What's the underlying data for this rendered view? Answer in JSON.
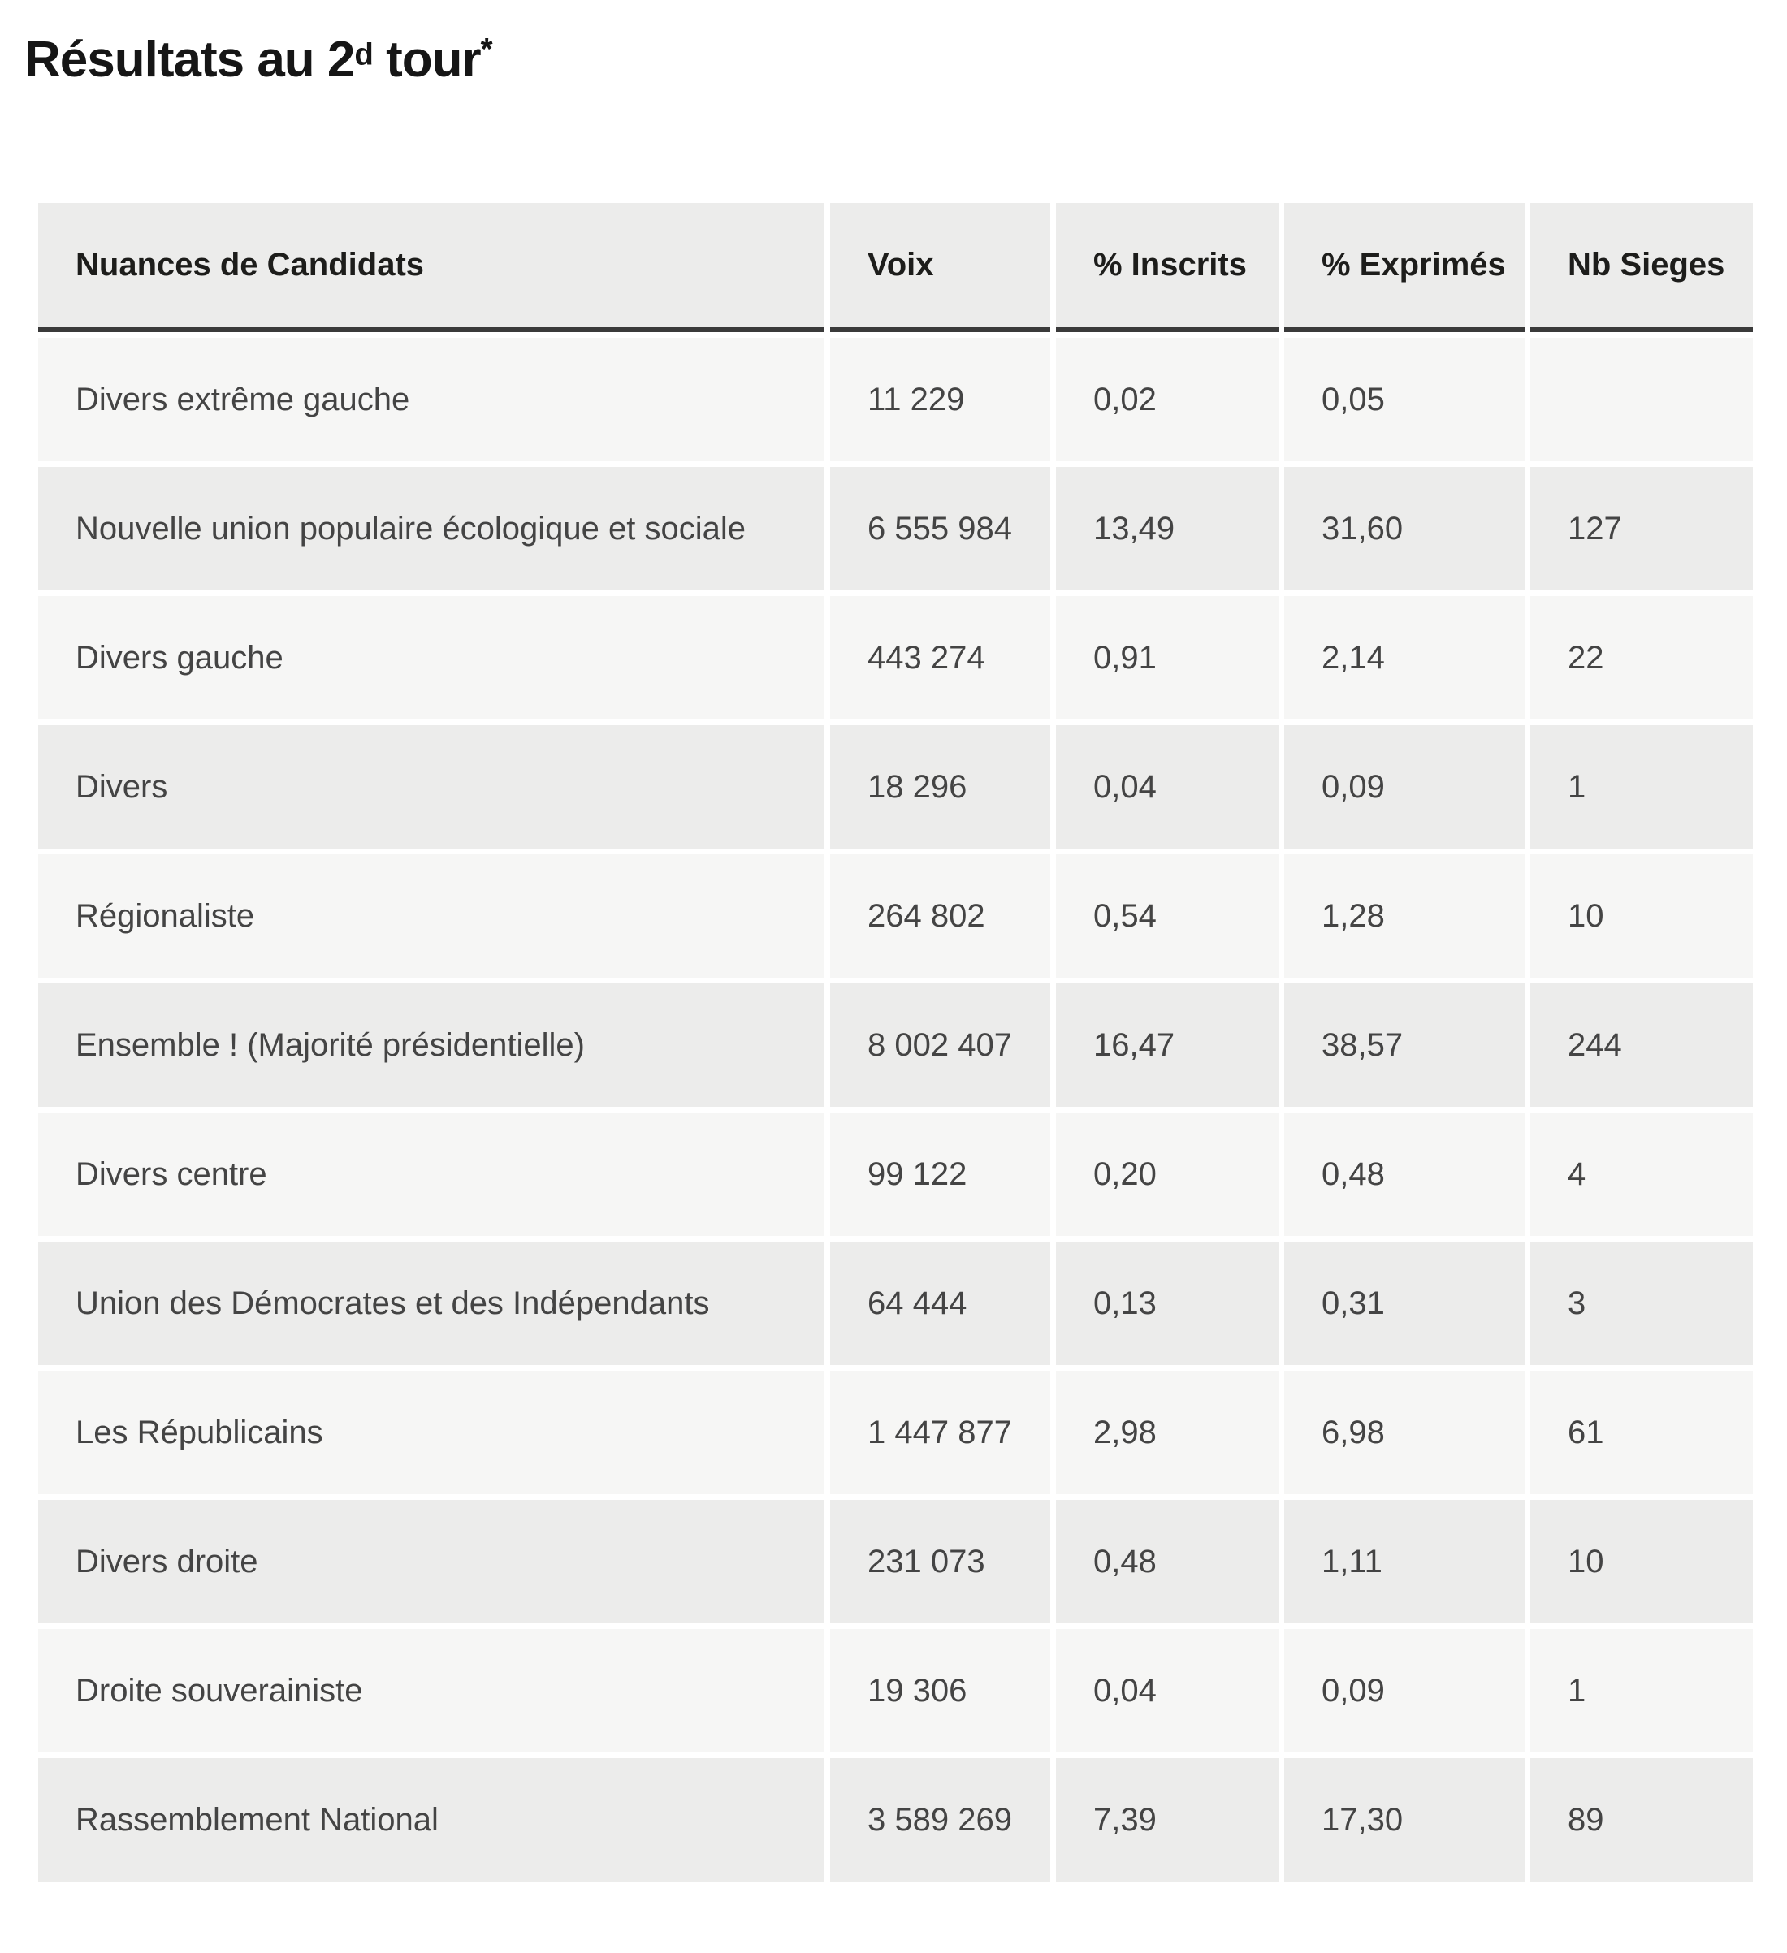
{
  "title_parts": {
    "prefix": "Résultats au 2",
    "sup1": "d",
    "mid": " tour",
    "sup2": "*"
  },
  "chart_data": {
    "type": "table",
    "title": "Résultats au 2d tour*",
    "columns": [
      "Nuances de Candidats",
      "Voix",
      "% Inscrits",
      "% Exprimés",
      "Nb Sieges"
    ],
    "rows": [
      [
        "Divers extrême gauche",
        "11 229",
        "0,02",
        "0,05",
        ""
      ],
      [
        "Nouvelle union populaire écologique et sociale",
        "6 555 984",
        "13,49",
        "31,60",
        "127"
      ],
      [
        "Divers gauche",
        "443 274",
        "0,91",
        "2,14",
        "22"
      ],
      [
        "Divers",
        "18 296",
        "0,04",
        "0,09",
        "1"
      ],
      [
        "Régionaliste",
        "264 802",
        "0,54",
        "1,28",
        "10"
      ],
      [
        "Ensemble ! (Majorité présidentielle)",
        "8 002 407",
        "16,47",
        "38,57",
        "244"
      ],
      [
        "Divers centre",
        "99 122",
        "0,20",
        "0,48",
        "4"
      ],
      [
        "Union des Démocrates et des Indépendants",
        "64 444",
        "0,13",
        "0,31",
        "3"
      ],
      [
        "Les Républicains",
        "1 447 877",
        "2,98",
        "6,98",
        "61"
      ],
      [
        "Divers droite",
        "231 073",
        "0,48",
        "1,11",
        "10"
      ],
      [
        "Droite souverainiste",
        "19 306",
        "0,04",
        "0,09",
        "1"
      ],
      [
        "Rassemblement National",
        "3 589 269",
        "7,39",
        "17,30",
        "89"
      ]
    ],
    "colors": {
      "row_light": "#f6f6f5",
      "row_dark": "#ececeb",
      "header_border": "#3a3a3a",
      "text": "#444444",
      "title_text": "#161616"
    },
    "layout": {
      "grid": "off",
      "header_position": "top"
    }
  }
}
